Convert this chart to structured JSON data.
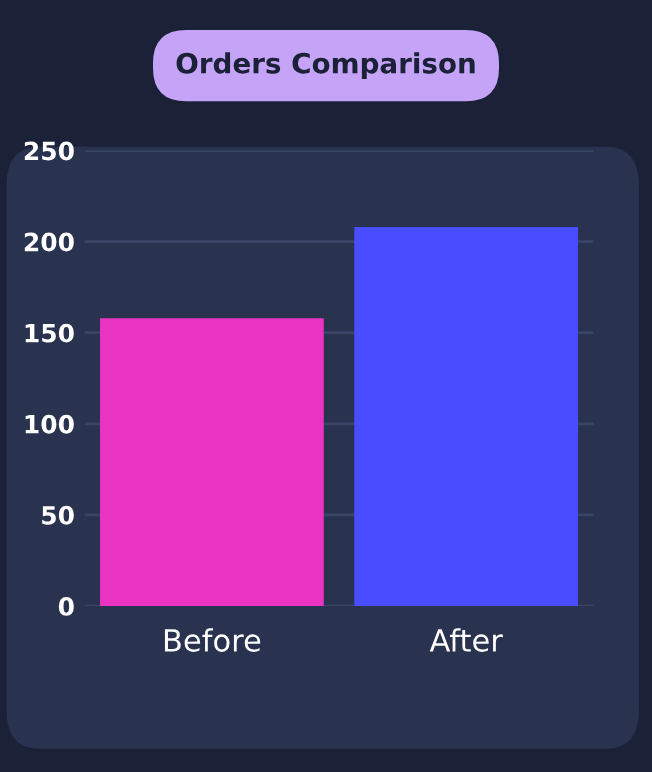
{
  "chart_data": {
    "type": "bar",
    "title": "Orders Comparison",
    "categories": [
      "Before",
      "After"
    ],
    "values": [
      158,
      208
    ],
    "colors": [
      "#e834c0",
      "#4a4cff"
    ],
    "ylim": [
      0,
      250
    ],
    "yticks": [
      0,
      50,
      100,
      150,
      200,
      250
    ],
    "grid": "y"
  }
}
